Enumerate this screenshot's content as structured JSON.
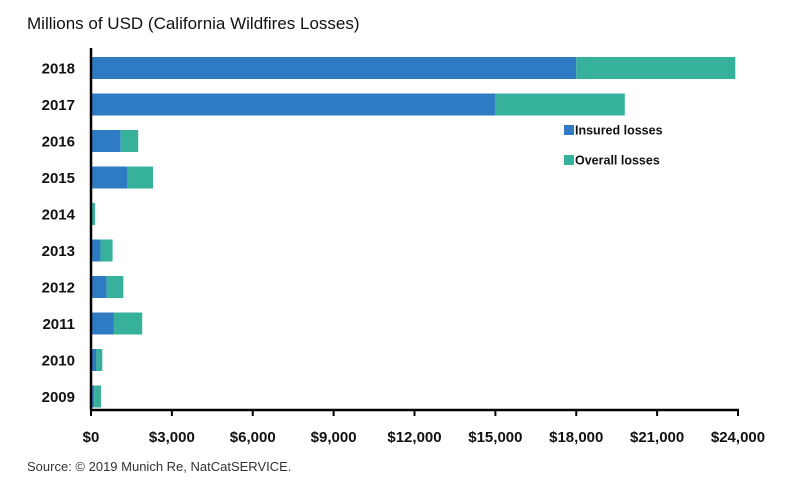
{
  "title": "Millions of USD (California Wildfires Losses)",
  "source": "Source: © 2019 Munich Re, NatCatSERVICE.",
  "colors": {
    "insured": "#2f7bc3",
    "overall": "#36b29c",
    "axis": "#000000"
  },
  "chart_data": {
    "type": "bar",
    "orientation": "horizontal",
    "stacked": true,
    "categories": [
      "2018",
      "2017",
      "2016",
      "2015",
      "2014",
      "2013",
      "2012",
      "2011",
      "2010",
      "2009"
    ],
    "series": [
      {
        "name": "Insured losses",
        "values": [
          18000,
          15000,
          1100,
          1350,
          0,
          350,
          580,
          850,
          200,
          120
        ]
      },
      {
        "name": "Overall losses",
        "values": [
          5900,
          4800,
          650,
          950,
          150,
          450,
          620,
          1050,
          220,
          250
        ]
      }
    ],
    "xticks": [
      "$0",
      "$3,000",
      "$6,000",
      "$9,000",
      "$12,000",
      "$15,000",
      "$18,000",
      "$21,000",
      "$24,000"
    ],
    "xlim": [
      0,
      24000
    ],
    "legend_position": "right",
    "grid": false
  }
}
